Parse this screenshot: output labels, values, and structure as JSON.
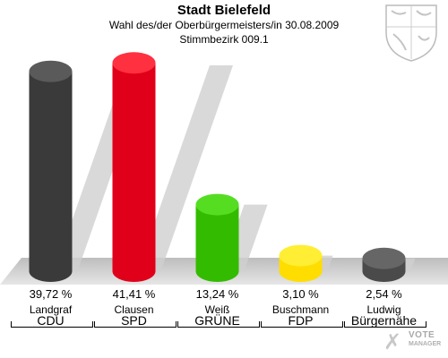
{
  "header": {
    "title": "Stadt Bielefeld",
    "subtitle": "Wahl des/der Oberbürgermeisters/in 30.08.2009",
    "district": "Stimmbezirk 009.1"
  },
  "branding": {
    "line1": "VOTE",
    "line2": "MANAGER",
    "mark": "✗"
  },
  "chart_data": {
    "type": "bar",
    "title": "Stadt Bielefeld",
    "subtitle": "Wahl des/der Oberbürgermeisters/in 30.08.2009 — Stimmbezirk 009.1",
    "unit": "%",
    "ylim": [
      0,
      45
    ],
    "grid": false,
    "legend": "none",
    "categories": [
      "Landgraf",
      "Clausen",
      "Weiß",
      "Buschmann",
      "Ludwig"
    ],
    "parties": [
      "CDU",
      "SPD",
      "GRÜNE",
      "FDP",
      "Bürgernähe"
    ],
    "values": [
      39.72,
      41.41,
      13.24,
      3.1,
      2.54
    ],
    "value_labels": [
      "39,72 %",
      "41,41 %",
      "13,24 %",
      "3,10 %",
      "2,54 %"
    ],
    "colors": [
      "#3a3a3a",
      "#e0001a",
      "#33bb00",
      "#ffdd00",
      "#4a4a4a"
    ],
    "top_colors": [
      "#5a5a5a",
      "#ff3040",
      "#55dd22",
      "#ffee33",
      "#666666"
    ]
  }
}
